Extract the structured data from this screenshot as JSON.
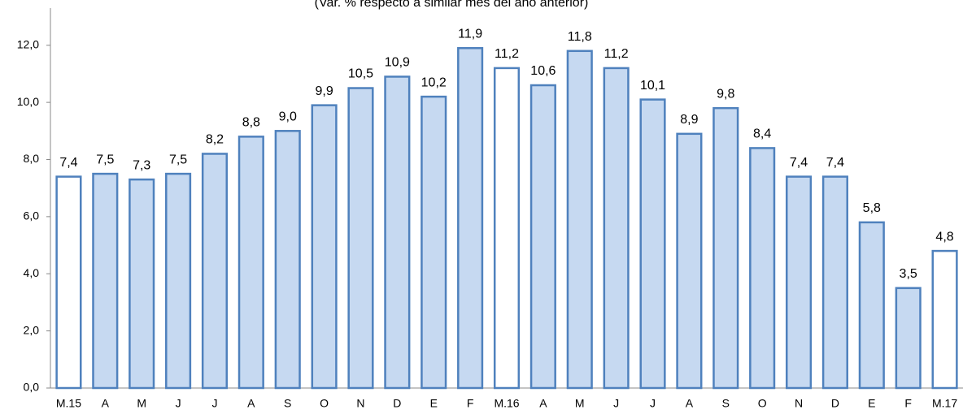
{
  "chart_data": {
    "type": "bar",
    "subtitle": "(Var. % respecto a similar mes del año anterior)",
    "categories": [
      "M.15",
      "A",
      "M",
      "J",
      "J",
      "A",
      "S",
      "O",
      "N",
      "D",
      "E",
      "F",
      "M.16",
      "A",
      "M",
      "J",
      "J",
      "A",
      "S",
      "O",
      "N",
      "D",
      "E",
      "F",
      "M.17"
    ],
    "values": [
      7.4,
      7.5,
      7.3,
      7.5,
      8.2,
      8.8,
      9.0,
      9.9,
      10.5,
      10.9,
      10.2,
      11.9,
      11.2,
      10.6,
      11.8,
      11.2,
      10.1,
      8.9,
      9.8,
      8.4,
      7.4,
      7.4,
      5.8,
      3.5,
      4.8
    ],
    "value_labels": [
      "7,4",
      "7,5",
      "7,3",
      "7,5",
      "8,2",
      "8,8",
      "9,0",
      "9,9",
      "10,5",
      "10,9",
      "10,2",
      "11,9",
      "11,2",
      "10,6",
      "11,8",
      "11,2",
      "10,1",
      "8,9",
      "9,8",
      "8,4",
      "7,4",
      "7,4",
      "5,8",
      "3,5",
      "4,8"
    ],
    "colors": [
      "#ffffff",
      "#c6d9f1",
      "#c6d9f1",
      "#c6d9f1",
      "#c6d9f1",
      "#c6d9f1",
      "#c6d9f1",
      "#c6d9f1",
      "#c6d9f1",
      "#c6d9f1",
      "#c6d9f1",
      "#c6d9f1",
      "#ffffff",
      "#c6d9f1",
      "#c6d9f1",
      "#c6d9f1",
      "#c6d9f1",
      "#c6d9f1",
      "#c6d9f1",
      "#c6d9f1",
      "#c6d9f1",
      "#c6d9f1",
      "#c6d9f1",
      "#c6d9f1",
      "#ffffff"
    ],
    "edge_color": "#4f81bd",
    "ylim": [
      0,
      13.3
    ],
    "yticks": [
      {
        "value": 0,
        "label": "0,0"
      },
      {
        "value": 2,
        "label": "2,0"
      },
      {
        "value": 4,
        "label": "4,0"
      },
      {
        "value": 6,
        "label": "6,0"
      },
      {
        "value": 8,
        "label": "8,0"
      },
      {
        "value": 10,
        "label": "10,0"
      },
      {
        "value": 12,
        "label": "12,0"
      }
    ],
    "grid": false
  }
}
